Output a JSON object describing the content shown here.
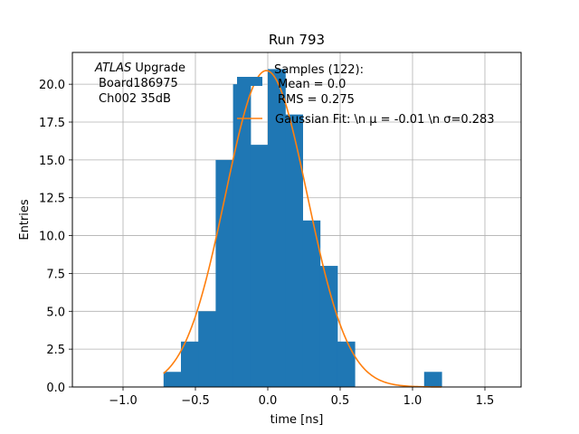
{
  "chart_data": {
    "type": "bar",
    "title": "Run 793",
    "xlabel": "time [ns]",
    "ylabel": "Entries",
    "xlim": [
      -1.35,
      1.75
    ],
    "ylim": [
      0,
      22.1
    ],
    "grid": true,
    "x_ticks": [
      -1.0,
      -0.5,
      0.0,
      0.5,
      1.0,
      1.5
    ],
    "x_tick_labels": [
      "−1.0",
      "−0.5",
      "0.0",
      "0.5",
      "1.0",
      "1.5"
    ],
    "y_ticks": [
      0,
      2.5,
      5,
      7.5,
      10,
      12.5,
      15,
      17.5,
      20
    ],
    "y_tick_labels": [
      "0.0",
      "2.5",
      "5.0",
      "7.5",
      "10.0",
      "12.5",
      "15.0",
      "17.5",
      "20.0"
    ],
    "annotation": {
      "line1_italic": "ATLAS",
      "line1_rest": " Upgrade",
      "line2": "Board186975",
      "line3": "Ch002 35dB"
    },
    "histogram": {
      "name": "Samples (122):\n Mean = 0.0\nRMS = 0.275",
      "legend_lines": [
        "Samples (122):",
        " Mean = 0.0",
        "RMS = 0.275"
      ],
      "color": "#1f77b4",
      "bin_edges": [
        -0.72,
        -0.6,
        -0.48,
        -0.36,
        -0.24,
        -0.12,
        0.0,
        0.12,
        0.24,
        0.36,
        0.48,
        0.6,
        0.72,
        0.84,
        0.96,
        1.08,
        1.2
      ],
      "counts": [
        1,
        3,
        5,
        15,
        20,
        16,
        21,
        18,
        11,
        8,
        3,
        0,
        0,
        0,
        0,
        1
      ]
    },
    "fit": {
      "name": "Gaussian Fit: \\n μ = -0.01 \\n σ=0.283",
      "legend_label": "Gaussian Fit: \\n μ = -0.01 \\n σ=0.283",
      "color": "#ff7f0e",
      "amplitude": 20.9,
      "mu": -0.01,
      "sigma": 0.283,
      "x_range": [
        -0.72,
        1.2
      ]
    }
  }
}
